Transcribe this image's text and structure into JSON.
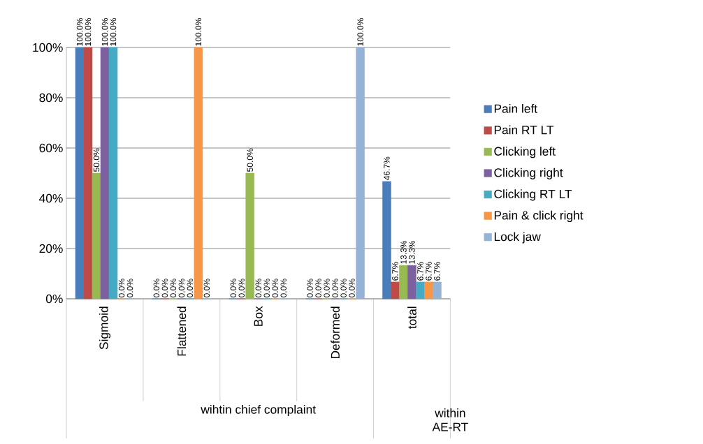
{
  "chart_data": {
    "type": "bar",
    "categories": [
      "Sigmoid",
      "Flattened",
      "Box",
      "Deformed",
      "total"
    ],
    "series": [
      {
        "name": "Pain left",
        "color": "#4a7ebb",
        "values": [
          100,
          0,
          0,
          0,
          46.7
        ],
        "value_labels": [
          "100.0%",
          "0.0%",
          "0.0%",
          "0.0%",
          "46.7%"
        ]
      },
      {
        "name": "Pain RT LT",
        "color": "#be4b48",
        "values": [
          100,
          0,
          0,
          0,
          6.7
        ],
        "value_labels": [
          "100.0%",
          "0.0%",
          "0.0%",
          "0.0%",
          "6.7%"
        ]
      },
      {
        "name": "Clicking left",
        "color": "#98b954",
        "values": [
          50,
          0,
          50,
          0,
          13.3
        ],
        "value_labels": [
          "50.0%",
          "0.0%",
          "50.0%",
          "0.0%",
          "13.3%"
        ]
      },
      {
        "name": "Clicking right",
        "color": "#7d60a0",
        "values": [
          100,
          0,
          0,
          0,
          13.3
        ],
        "value_labels": [
          "100.0%",
          "0.0%",
          "0.0%",
          "0.0%",
          "13.3%"
        ]
      },
      {
        "name": "Clicking RT LT",
        "color": "#46aac5",
        "values": [
          100,
          0,
          0,
          0,
          6.7
        ],
        "value_labels": [
          "100.0%",
          "0.0%",
          "0.0%",
          "0.0%",
          "6.7%"
        ]
      },
      {
        "name": "Pain & click right",
        "color": "#f79646",
        "values": [
          0,
          100,
          0,
          0,
          6.7
        ],
        "value_labels": [
          "0.0%",
          "100.0%",
          "0.0%",
          "0.0%",
          "6.7%"
        ]
      },
      {
        "name": "Lock jaw",
        "color": "#95b3d7",
        "values": [
          0,
          0,
          0,
          100,
          6.7
        ],
        "value_labels": [
          "0.0%",
          "0.0%",
          "0.0%",
          "100.0%",
          "6.7%"
        ]
      }
    ],
    "ylim": [
      0,
      100
    ],
    "yticks": [
      {
        "value": 0,
        "label": "0%"
      },
      {
        "value": 20,
        "label": "20%"
      },
      {
        "value": 40,
        "label": "40%"
      },
      {
        "value": 60,
        "label": "60%"
      },
      {
        "value": 80,
        "label": "80%"
      },
      {
        "value": 100,
        "label": "100%"
      }
    ],
    "grid": "y",
    "legend": "right",
    "annotations": [
      "wihtin chief complaint",
      "within AE-RT"
    ]
  }
}
